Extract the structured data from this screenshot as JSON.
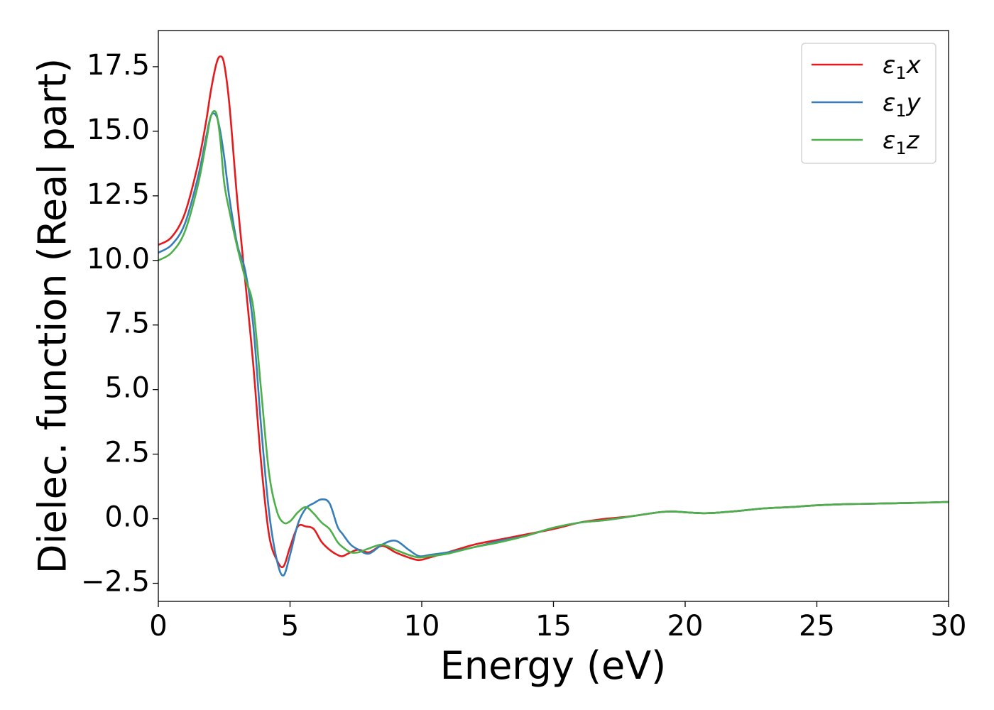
{
  "chart_data": {
    "type": "line",
    "title": "",
    "xlabel": "Energy (eV)",
    "ylabel": "Dielec. function (Real part)",
    "xlim": [
      0,
      30
    ],
    "ylim": [
      -3.2,
      18.9
    ],
    "xticks": [
      0,
      5,
      10,
      15,
      20,
      25,
      30
    ],
    "xtick_labels": [
      "0",
      "5",
      "10",
      "15",
      "20",
      "25",
      "30"
    ],
    "yticks": [
      -2.5,
      0.0,
      2.5,
      5.0,
      7.5,
      10.0,
      12.5,
      15.0,
      17.5
    ],
    "ytick_labels": [
      "−2.5",
      "0.0",
      "2.5",
      "5.0",
      "7.5",
      "10.0",
      "12.5",
      "15.0",
      "17.5"
    ],
    "grid": false,
    "legend_position": "top-right",
    "series": [
      {
        "name": "ε₁x",
        "legend": {
          "symbol": "ε",
          "sub": "1",
          "var": "x"
        },
        "color": "#e41a1c",
        "x": [
          0,
          0.5,
          1.0,
          1.5,
          1.8,
          2.0,
          2.2,
          2.35,
          2.5,
          2.7,
          3.0,
          3.3,
          3.6,
          3.9,
          4.2,
          4.5,
          4.75,
          5.0,
          5.3,
          5.6,
          5.9,
          6.2,
          6.5,
          6.8,
          7.0,
          7.3,
          7.6,
          8.0,
          8.5,
          9.0,
          9.5,
          9.9,
          10.3,
          11.0,
          12.0,
          13.0,
          14.0,
          15.0,
          16.0,
          17.0,
          18.0,
          19.0,
          19.5,
          20.0,
          20.5,
          21.0,
          22.0,
          23.0,
          24.0,
          25.0,
          26.0,
          27.0,
          28.0,
          29.0,
          30.0
        ],
        "y": [
          10.6,
          10.9,
          11.8,
          13.7,
          15.3,
          16.6,
          17.6,
          17.9,
          17.6,
          16.0,
          12.3,
          9.2,
          6.0,
          2.2,
          -0.6,
          -1.6,
          -1.85,
          -1.1,
          -0.3,
          -0.3,
          -0.4,
          -0.9,
          -1.2,
          -1.4,
          -1.45,
          -1.3,
          -1.2,
          -1.3,
          -1.05,
          -1.3,
          -1.5,
          -1.6,
          -1.5,
          -1.3,
          -1.0,
          -0.8,
          -0.6,
          -0.4,
          -0.15,
          0.0,
          0.1,
          0.25,
          0.28,
          0.25,
          0.22,
          0.22,
          0.3,
          0.4,
          0.45,
          0.52,
          0.56,
          0.58,
          0.6,
          0.62,
          0.65
        ]
      },
      {
        "name": "ε₁y",
        "legend": {
          "symbol": "ε",
          "sub": "1",
          "var": "y"
        },
        "color": "#377eb8",
        "x": [
          0,
          0.5,
          1.0,
          1.5,
          1.8,
          2.0,
          2.2,
          2.35,
          2.5,
          2.7,
          3.0,
          3.3,
          3.6,
          3.9,
          4.2,
          4.5,
          4.75,
          5.0,
          5.3,
          5.6,
          5.9,
          6.2,
          6.5,
          6.8,
          7.0,
          7.3,
          7.6,
          8.0,
          8.5,
          9.0,
          9.5,
          9.9,
          10.3,
          11.0,
          12.0,
          13.0,
          14.0,
          15.0,
          16.0,
          17.0,
          18.0,
          19.0,
          19.5,
          20.0,
          20.5,
          21.0,
          22.0,
          23.0,
          24.0,
          25.0,
          26.0,
          27.0,
          28.0,
          29.0,
          30.0
        ],
        "y": [
          10.3,
          10.6,
          11.4,
          13.2,
          14.7,
          15.6,
          15.6,
          15.0,
          14.0,
          12.4,
          10.6,
          9.6,
          7.5,
          3.6,
          0.3,
          -1.6,
          -2.2,
          -1.4,
          -0.2,
          0.4,
          0.6,
          0.75,
          0.6,
          -0.3,
          -0.6,
          -1.0,
          -1.2,
          -1.35,
          -1.0,
          -0.85,
          -1.2,
          -1.45,
          -1.4,
          -1.3,
          -1.1,
          -0.85,
          -0.65,
          -0.35,
          -0.15,
          -0.05,
          0.1,
          0.25,
          0.28,
          0.25,
          0.22,
          0.22,
          0.3,
          0.4,
          0.45,
          0.52,
          0.56,
          0.58,
          0.6,
          0.62,
          0.65
        ]
      },
      {
        "name": "ε₁z",
        "legend": {
          "symbol": "ε",
          "sub": "1",
          "var": "z"
        },
        "color": "#4daf4a",
        "x": [
          0,
          0.5,
          1.0,
          1.5,
          1.8,
          2.0,
          2.2,
          2.35,
          2.5,
          2.7,
          3.0,
          3.3,
          3.6,
          3.9,
          4.2,
          4.5,
          4.75,
          5.0,
          5.3,
          5.6,
          5.9,
          6.2,
          6.5,
          6.8,
          7.0,
          7.3,
          7.6,
          8.0,
          8.5,
          9.0,
          9.5,
          9.9,
          10.3,
          11.0,
          12.0,
          13.0,
          14.0,
          15.0,
          16.0,
          17.0,
          18.0,
          19.0,
          19.5,
          20.0,
          20.5,
          21.0,
          22.0,
          23.0,
          24.0,
          25.0,
          26.0,
          27.0,
          28.0,
          29.0,
          30.0
        ],
        "y": [
          10.0,
          10.3,
          11.1,
          12.9,
          14.5,
          15.6,
          15.7,
          14.7,
          13.0,
          11.9,
          10.5,
          9.3,
          8.2,
          5.0,
          1.8,
          0.3,
          -0.15,
          -0.1,
          0.25,
          0.45,
          0.2,
          -0.15,
          -0.4,
          -0.9,
          -1.1,
          -1.3,
          -1.3,
          -1.15,
          -1.0,
          -1.2,
          -1.4,
          -1.5,
          -1.45,
          -1.35,
          -1.1,
          -0.9,
          -0.65,
          -0.35,
          -0.15,
          -0.05,
          0.1,
          0.25,
          0.28,
          0.25,
          0.22,
          0.22,
          0.3,
          0.4,
          0.45,
          0.52,
          0.56,
          0.58,
          0.6,
          0.62,
          0.65
        ]
      }
    ]
  }
}
